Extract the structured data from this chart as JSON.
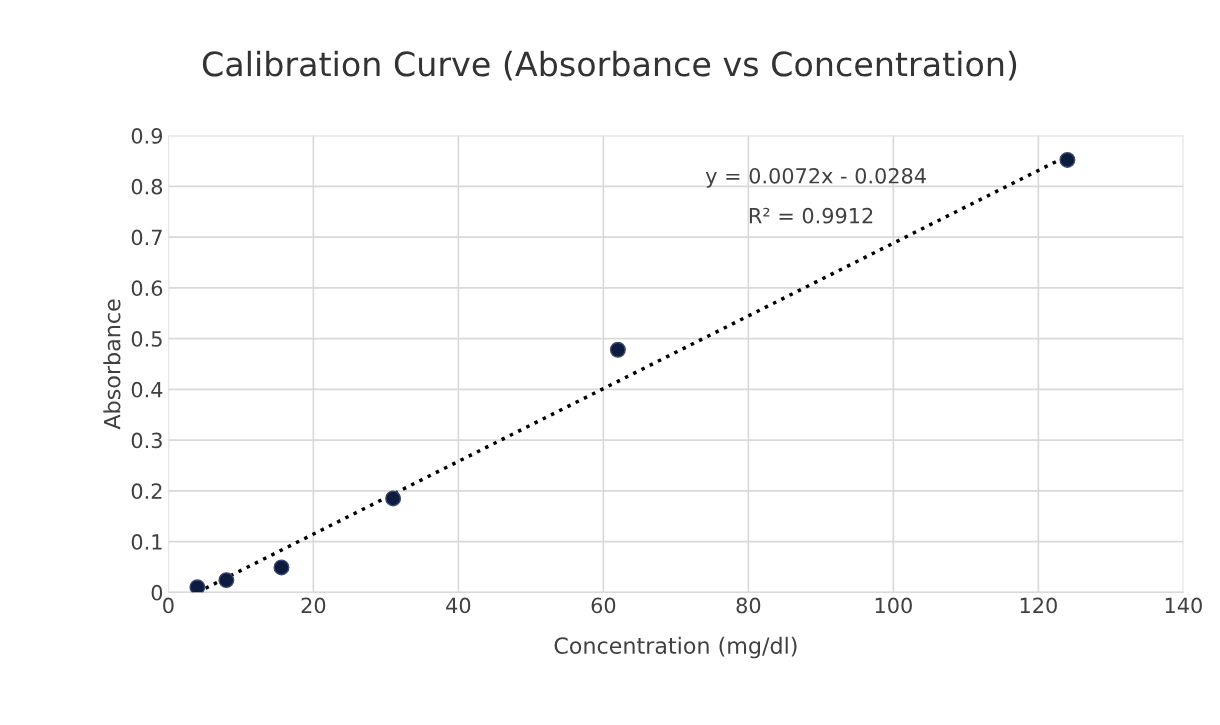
{
  "chart_data": {
    "type": "scatter",
    "title": "Calibration Curve (Absorbance vs Concentration)",
    "xlabel": "Concentration (mg/dl)",
    "ylabel": "Absorbance",
    "series": [
      {
        "color": "#0d1b3e",
        "marker": "circle",
        "x": [
          4,
          8,
          15.6,
          31,
          62,
          124
        ],
        "values": [
          0.01,
          0.024,
          0.049,
          0.185,
          0.478,
          0.852
        ]
      },
      {
        "type": "line",
        "color": "#000000",
        "line_style": "dotted",
        "marker": "none",
        "x": [
          4,
          124
        ],
        "values": [
          0.0,
          0.86
        ]
      }
    ],
    "annotations": [
      "y = 0.0072x - 0.0284",
      "R² = 0.9912"
    ],
    "xlim": [
      0,
      140
    ],
    "xticks": [
      0,
      20,
      40,
      60,
      80,
      100,
      120,
      140
    ],
    "ylim": [
      0,
      0.9
    ],
    "yticks": [
      0,
      0.1,
      0.2,
      0.3,
      0.4,
      0.5,
      0.6,
      0.7,
      0.8,
      0.9
    ],
    "grid": true
  }
}
